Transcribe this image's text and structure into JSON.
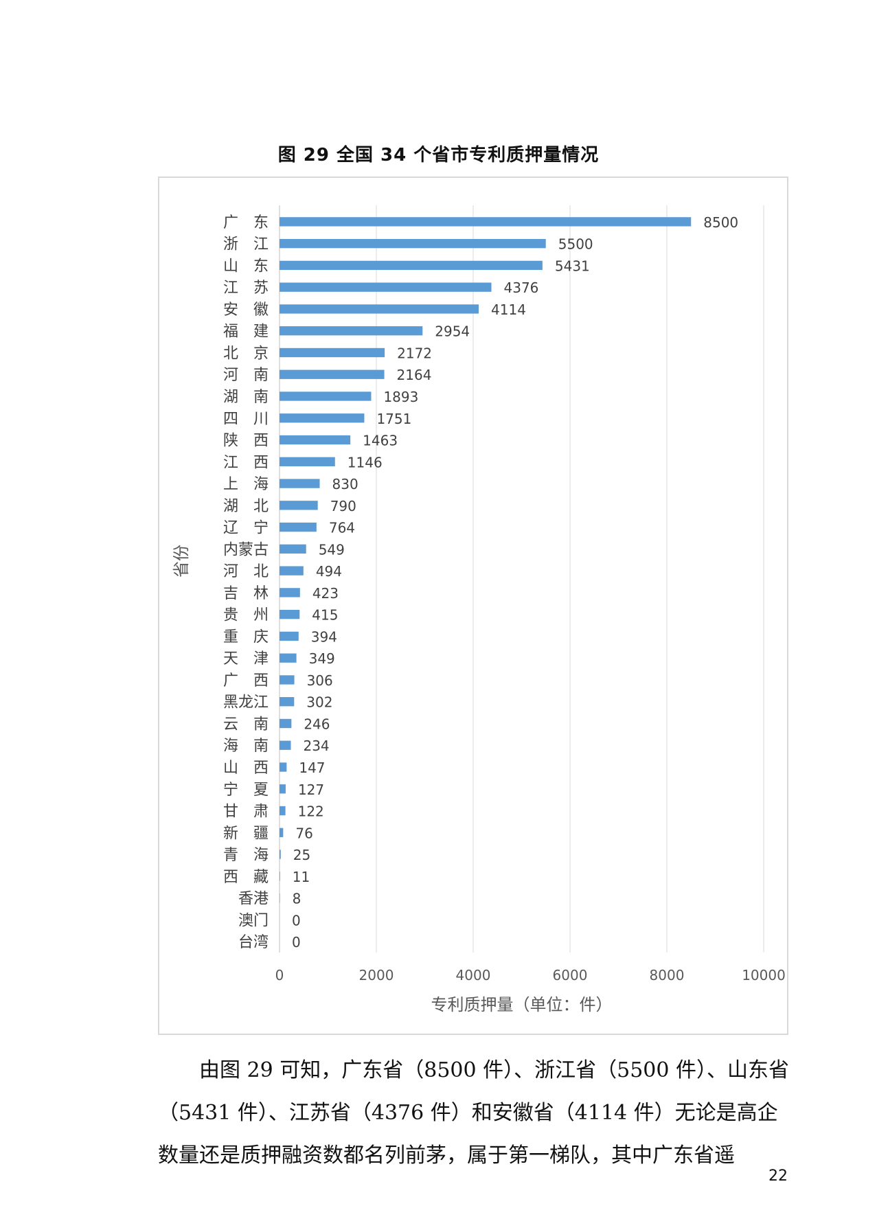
{
  "figure_title": "图 29 全国 34 个省市专利质押量情况",
  "paragraph": "由图 29 可知，广东省（8500 件）、浙江省（5500 件）、山东省（5431 件）、江苏省（4376 件）和安徽省（4114 件）无论是高企数量还是质押融资数都名列前茅，属于第一梯队，其中广东省遥",
  "page_number": "22",
  "chart_data": {
    "type": "bar",
    "orientation": "horizontal",
    "title": "图 29 全国 34 个省市专利质押量情况",
    "xlabel": "专利质押量（单位：件）",
    "ylabel": "省份",
    "xlim": [
      0,
      10000
    ],
    "xticks": [
      0,
      2000,
      4000,
      6000,
      8000,
      10000
    ],
    "grid": true,
    "bar_color": "#5b9bd5",
    "categories": [
      "广　东",
      "浙　江",
      "山　东",
      "江　苏",
      "安　徽",
      "福　建",
      "北　京",
      "河　南",
      "湖　南",
      "四　川",
      "陕　西",
      "江　西",
      "上　海",
      "湖　北",
      "辽　宁",
      "内蒙古",
      "河　北",
      "吉　林",
      "贵　州",
      "重　庆",
      "天　津",
      "广　西",
      "黑龙江",
      "云　南",
      "海　南",
      "山　西",
      "宁　夏",
      "甘　肃",
      "新　疆",
      "青　海",
      "西　藏",
      "香港",
      "澳门",
      "台湾"
    ],
    "values": [
      8500,
      5500,
      5431,
      4376,
      4114,
      2954,
      2172,
      2164,
      1893,
      1751,
      1463,
      1146,
      830,
      790,
      764,
      549,
      494,
      423,
      415,
      394,
      349,
      306,
      302,
      246,
      234,
      147,
      127,
      122,
      76,
      25,
      11,
      8,
      0,
      0
    ]
  }
}
